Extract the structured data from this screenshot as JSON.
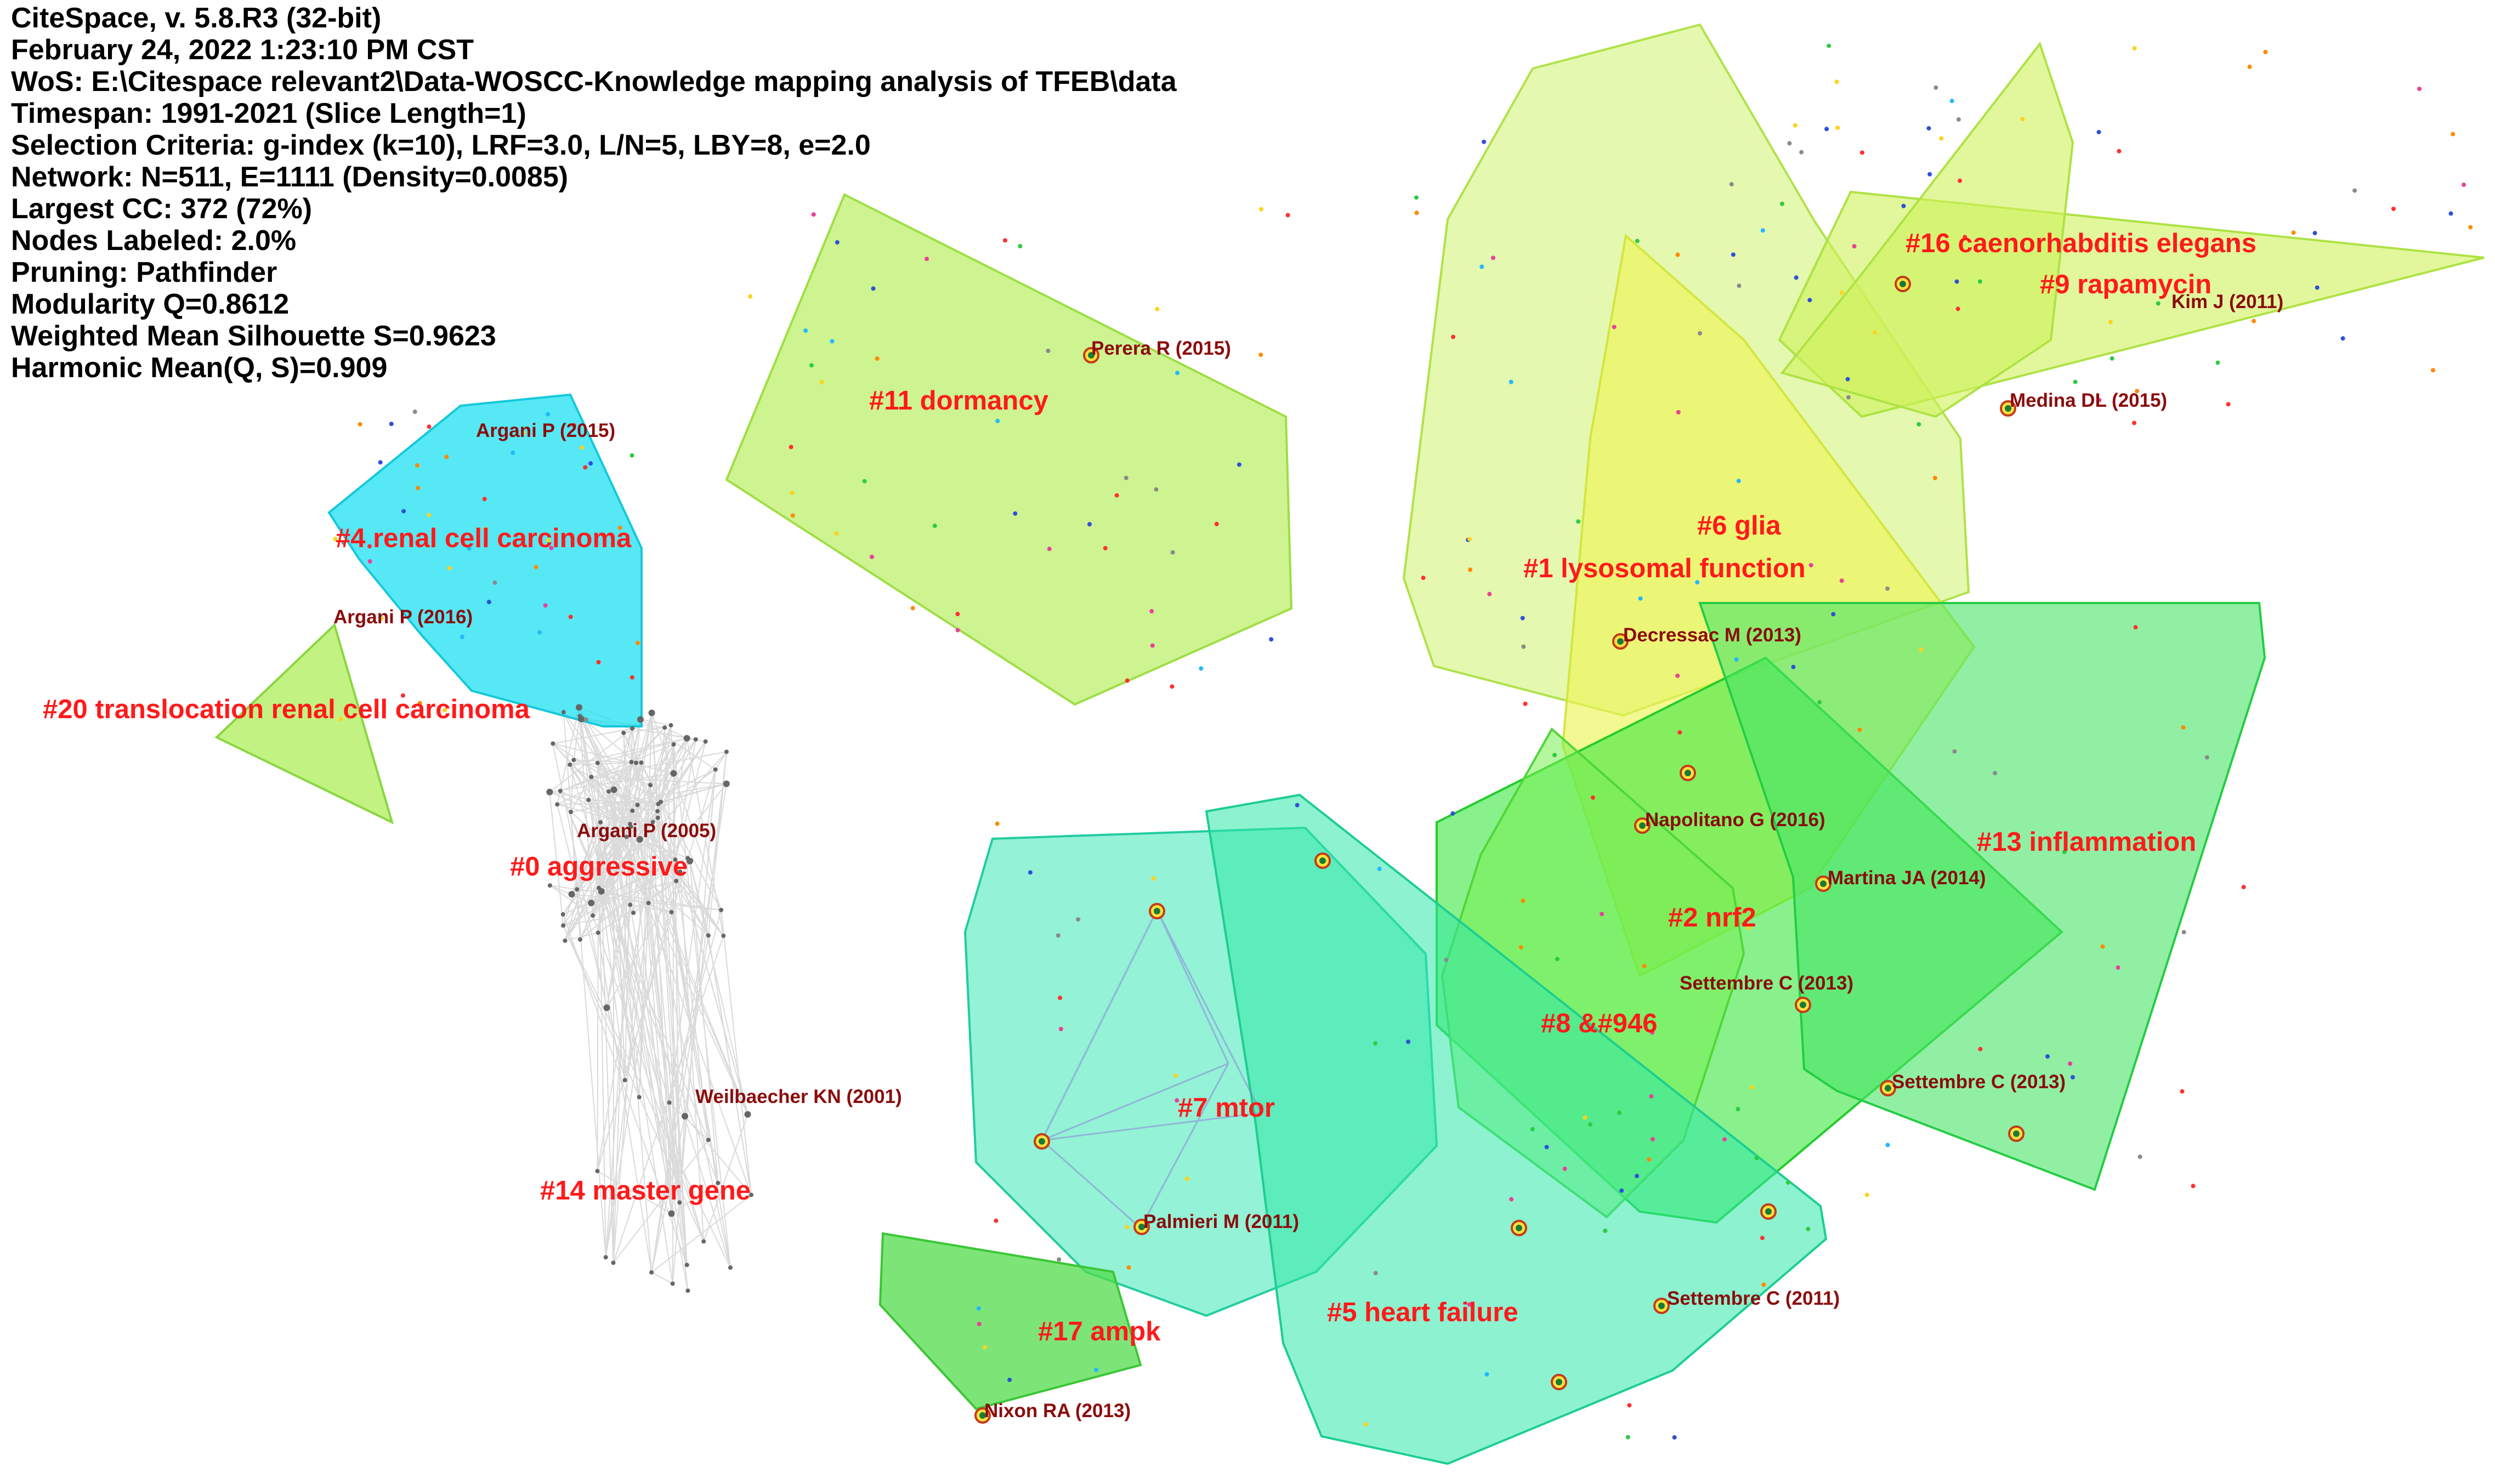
{
  "app": {
    "title": "CiteSpace, v. 5.8.R3 (32-bit)"
  },
  "metadata": [
    "CiteSpace, v. 5.8.R3 (32-bit)",
    "February 24, 2022 1:23:10 PM CST",
    "WoS: E:\\Citespace relevant2\\Data-WOSCC-Knowledge mapping analysis of TFEB\\data",
    "Timespan: 1991-2021 (Slice Length=1)",
    "Selection Criteria: g-index (k=10), LRF=3.0, L/N=5, LBY=8, e=2.0",
    "Network: N=511, E=1111 (Density=0.0085)",
    "Largest CC: 372 (72%)",
    "Nodes Labeled: 2.0%",
    "Pruning: Pathfinder",
    "Modularity Q=0.8612",
    "Weighted Mean Silhouette S=0.9623",
    "Harmonic Mean(Q, S)=0.909"
  ],
  "clusters": [
    {
      "id": "0",
      "label": "#0 aggressive",
      "color": "#c8c8c8"
    },
    {
      "id": "1",
      "label": "#1 lysosomal function",
      "color": "#e6f53c"
    },
    {
      "id": "2",
      "label": "#2 nrf2",
      "color": "#39e83e"
    },
    {
      "id": "4",
      "label": "#4 renal cell carcinoma",
      "color": "#1ee0f2"
    },
    {
      "id": "5",
      "label": "#5 heart failure",
      "color": "#30e8a8"
    },
    {
      "id": "6",
      "label": "#6 glia",
      "color": "#b6f060"
    },
    {
      "id": "7",
      "label": "#7 mtor",
      "color": "#3ce8b4"
    },
    {
      "id": "8",
      "label": "#8 &#946",
      "color": "#6cee4e"
    },
    {
      "id": "9",
      "label": "#9 rapamycin",
      "color": "#ccf25c"
    },
    {
      "id": "11",
      "label": "#11 dormancy",
      "color": "#b4ec56"
    },
    {
      "id": "13",
      "label": "#13 inflammation",
      "color": "#42e464"
    },
    {
      "id": "14",
      "label": "#14 master gene",
      "color": "#c8c8c8"
    },
    {
      "id": "16",
      "label": "#16 caenorhabditis elegans",
      "color": "#c6f040"
    },
    {
      "id": "17",
      "label": "#17 ampk",
      "color": "#52dc4a"
    },
    {
      "id": "20",
      "label": "#20 translocation renal cell carcinoma",
      "color": "#a8ec4c"
    }
  ],
  "references": [
    "Argani P (2015)",
    "Argani P (2016)",
    "Argani P (2005)",
    "Weilbaecher KN (2001)",
    "Perera R (2015)",
    "Kim J (2011)",
    "Medina DL (2015)",
    "Decressac M (2013)",
    "Napolitano G (2016)",
    "Martina JA (2014)",
    "Settembre C (2013)",
    "Settembre C (2013)",
    "Palmieri M (2011)",
    "Settembre C (2011)",
    "Nixon RA (2013)"
  ],
  "colors": {
    "cluster_label": "#ff1a1a",
    "reference_label": "#8b0c0c",
    "metadata_text": "#000000",
    "background": "#ffffff"
  }
}
